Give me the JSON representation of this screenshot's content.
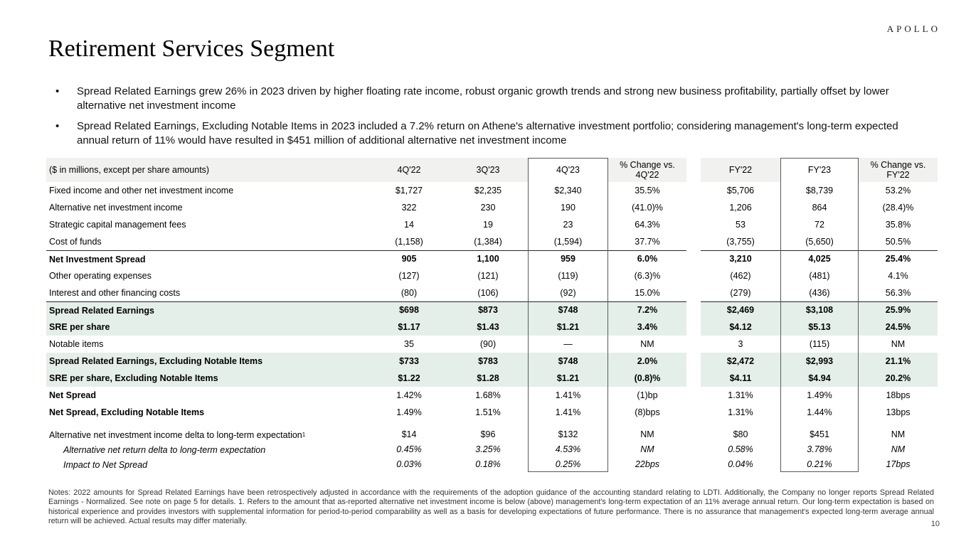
{
  "brand": {
    "logo_text": "APOLLO"
  },
  "title": "Retirement Services Segment",
  "bullets": [
    "Spread Related Earnings grew 26% in 2023 driven by higher floating rate income, robust organic growth trends and strong new business profitability, partially offset by lower alternative net investment income",
    "Spread Related Earnings, Excluding Notable Items in 2023 included a 7.2% return on Athene's alternative investment portfolio; considering management's long-term expected annual return of 11% would have resulted in $451 million of additional alternative net investment income"
  ],
  "colors": {
    "highlight_row_bg": "#e4efe9",
    "header_row_bg": "#f1f1ef",
    "rule_line": "#262626",
    "column_box_border": "#595959"
  },
  "table": {
    "header": {
      "label": "($ in millions, except per share amounts)",
      "columns": [
        "4Q'22",
        "3Q'23",
        "4Q'23",
        "% Change vs. 4Q'22",
        "FY'22",
        "FY'23",
        "% Change vs. FY'22"
      ]
    },
    "rows": [
      {
        "label": "Fixed income and other net investment income",
        "values": [
          "$1,727",
          "$2,235",
          "$2,340",
          "35.5%",
          "$5,706",
          "$8,739",
          "53.2%"
        ]
      },
      {
        "label": "Alternative net investment income",
        "values": [
          "322",
          "230",
          "190",
          "(41.0)%",
          "1,206",
          "864",
          "(28.4)%"
        ]
      },
      {
        "label": "Strategic capital management fees",
        "values": [
          "14",
          "19",
          "23",
          "64.3%",
          "53",
          "72",
          "35.8%"
        ]
      },
      {
        "label": "Cost of funds",
        "values": [
          "(1,158)",
          "(1,384)",
          "(1,594)",
          "37.7%",
          "(3,755)",
          "(5,650)",
          "50.5%"
        ]
      },
      {
        "label": "Net Investment Spread",
        "values": [
          "905",
          "1,100",
          "959",
          "6.0%",
          "3,210",
          "4,025",
          "25.4%"
        ],
        "bold": true,
        "topRule": true
      },
      {
        "label": "Other operating expenses",
        "values": [
          "(127)",
          "(121)",
          "(119)",
          "(6.3)%",
          "(462)",
          "(481)",
          "4.1%"
        ]
      },
      {
        "label": "Interest and other financing costs",
        "values": [
          "(80)",
          "(106)",
          "(92)",
          "15.0%",
          "(279)",
          "(436)",
          "56.3%"
        ]
      },
      {
        "label": "Spread Related Earnings",
        "values": [
          "$698",
          "$873",
          "$748",
          "7.2%",
          "$2,469",
          "$3,108",
          "25.9%"
        ],
        "bold": true,
        "highlight": true,
        "topRule": true
      },
      {
        "label": "SRE per share",
        "values": [
          "$1.17",
          "$1.43",
          "$1.21",
          "3.4%",
          "$4.12",
          "$5.13",
          "24.5%"
        ],
        "bold": true,
        "highlight": true
      },
      {
        "label": "Notable items",
        "values": [
          "35",
          "(90)",
          "—",
          "NM",
          "3",
          "(115)",
          "NM"
        ]
      },
      {
        "label": "Spread Related Earnings, Excluding Notable Items",
        "values": [
          "$733",
          "$783",
          "$748",
          "2.0%",
          "$2,472",
          "$2,993",
          "21.1%"
        ],
        "bold": true,
        "highlight": true
      },
      {
        "label": "SRE per share, Excluding Notable Items",
        "values": [
          "$1.22",
          "$1.28",
          "$1.21",
          "(0.8)%",
          "$4.11",
          "$4.94",
          "20.2%"
        ],
        "bold": true,
        "highlight": true
      },
      {
        "label": "Net Spread",
        "values": [
          "1.42%",
          "1.68%",
          "1.41%",
          "(1)bp",
          "1.31%",
          "1.49%",
          "18bps"
        ],
        "boldLabel": true
      },
      {
        "label": "Net Spread, Excluding Notable Items",
        "values": [
          "1.49%",
          "1.51%",
          "1.41%",
          "(8)bps",
          "1.31%",
          "1.44%",
          "13bps"
        ],
        "boldLabel": true
      },
      {
        "label": "Alternative net investment income delta to long-term expectation",
        "sup": "1",
        "values": [
          "$14",
          "$96",
          "$132",
          "NM",
          "$80",
          "$451",
          "NM"
        ],
        "gapBefore": true,
        "small": true
      },
      {
        "label": "Alternative net return delta to long-term expectation",
        "values": [
          "0.45%",
          "3.25%",
          "4.53%",
          "NM",
          "0.58%",
          "3.78%",
          "NM"
        ],
        "italic": true,
        "indent": true,
        "small": true
      },
      {
        "label": "Impact to Net Spread",
        "values": [
          "0.03%",
          "0.18%",
          "0.25%",
          "22bps",
          "0.04%",
          "0.21%",
          "17bps"
        ],
        "italic": true,
        "indent": true,
        "small": true
      }
    ]
  },
  "notes": "Notes: 2022 amounts for Spread Related Earnings have been retrospectively adjusted in accordance with the requirements of the adoption guidance of the accounting standard relating to LDTI. Additionally, the Company no longer reports Spread Related Earnings - Normalized. See note on page 5 for details. 1. Refers to the amount that as-reported alternative net investment income is below (above) management's long-term expectation of an 11% average annual return. Our long-term expectation is based on historical experience and provides investors with supplemental information for period-to-period comparability as well as a basis for developing expectations of future performance. There is no assurance that management's expected long-term average annual return will be achieved. Actual results may differ materially.",
  "page_number": "10"
}
